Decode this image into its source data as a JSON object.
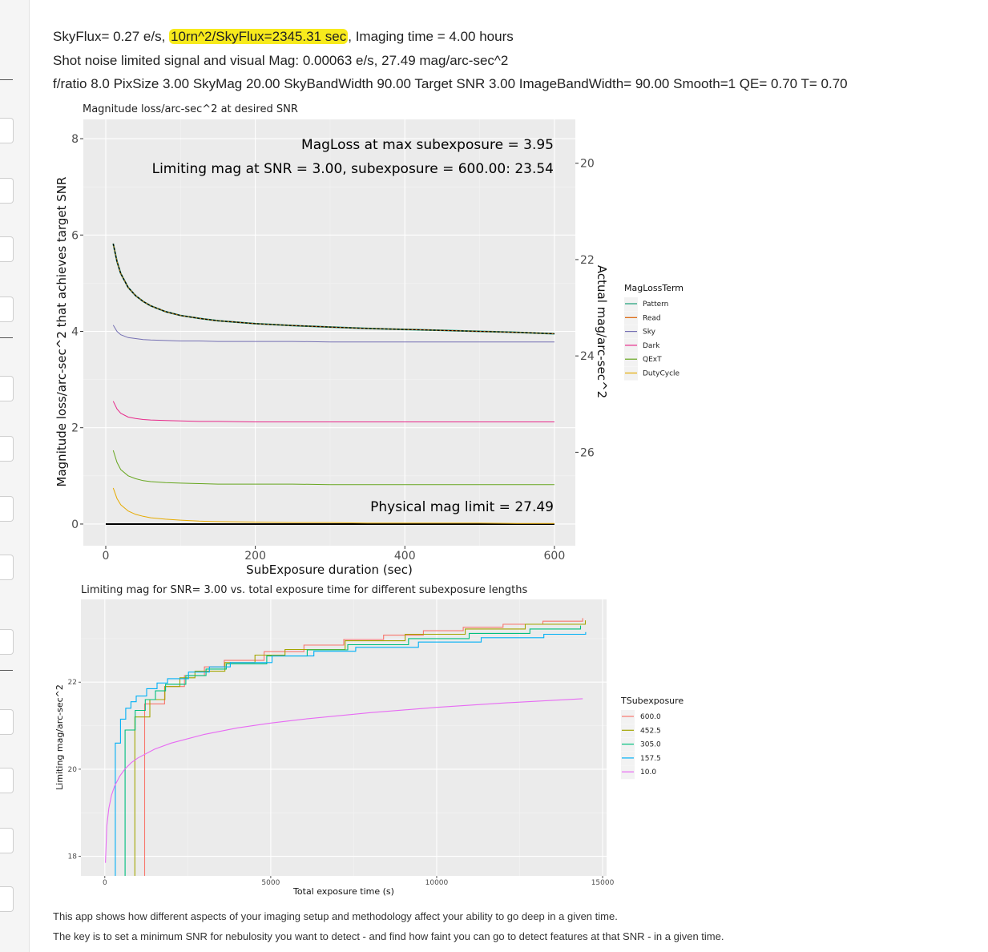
{
  "header": {
    "line1_pre": "SkyFlux= 0.27 e/s, ",
    "line1_hl": "10rn^2/SkyFlux=2345.31 sec",
    "line1_post": ", Imaging time = 4.00 hours",
    "line2": "Shot noise limited signal and visual Mag: 0.00063 e/s, 27.49 mag/arc-sec^2",
    "line3": "f/ratio 8.0 PixSize 3.00 SkyMag 20.00 SkyBandWidth 90.00 Target SNR 3.00 ImageBandWidth= 90.00 Smooth=1 QE= 0.70 T= 0.70"
  },
  "footer": {
    "line1": "This app shows how different aspects of your imaging setup and methodology affect your ability to go deep in a given time.",
    "line2": "The key is to set a minimum SNR for nebulosity you want to detect - and find how faint you can go to detect features at that SNR - in a given time."
  },
  "colors": {
    "accent_highlight": "#f7ea1c",
    "panel_bg": "#ebebeb",
    "Pattern": "#1b9e77",
    "Read": "#d95f02",
    "Sky": "#7570b3",
    "Dark": "#e7298a",
    "QExT": "#66a61e",
    "DutyCycle": "#e6ab02",
    "ts600": "#f8766d",
    "ts452": "#a3a500",
    "ts305": "#00bf7d",
    "ts157": "#00b0f6",
    "ts10": "#e76bf3"
  },
  "chart_data": [
    {
      "type": "line",
      "title": "Magnitude loss/arc-sec^2 at desired SNR",
      "xlabel": "SubExposure duration (sec)",
      "ylabel": "Magnitude loss/arc-sec^2 that achieves target SNR",
      "y2label": "Actual mag/arc-sec^2",
      "xlim": [
        -30,
        628
      ],
      "ylim": [
        -0.45,
        8.4
      ],
      "xticks": [
        0,
        200,
        400,
        600
      ],
      "yticks": [
        0,
        2,
        4,
        6,
        8
      ],
      "y2ticks": [
        20,
        22,
        24,
        26
      ],
      "y2_transform": "y2 = 27.49 - y",
      "grid": true,
      "legend": {
        "title": "MagLossTerm",
        "position": "right",
        "entries": [
          "Pattern",
          "Read",
          "Sky",
          "Dark",
          "QExT",
          "DutyCycle"
        ]
      },
      "annotations": {
        "a1": "MagLoss at max subexposure =   3.95",
        "a2": "Limiting mag at SNR =   3.00, subexposure = 600.00:  23.54",
        "a3": "Physical mag limit =  27.49"
      },
      "x": [
        10,
        15,
        20,
        30,
        40,
        50,
        60,
        80,
        100,
        125,
        150,
        200,
        250,
        300,
        350,
        400,
        450,
        500,
        550,
        600
      ],
      "series": [
        {
          "name": "Pattern",
          "values": [
            5.82,
            5.45,
            5.2,
            4.91,
            4.74,
            4.62,
            4.53,
            4.41,
            4.33,
            4.27,
            4.22,
            4.16,
            4.12,
            4.09,
            4.06,
            4.04,
            4.02,
            4.0,
            3.98,
            3.95
          ]
        },
        {
          "name": "Read",
          "values": [
            5.82,
            5.45,
            5.2,
            4.91,
            4.74,
            4.62,
            4.53,
            4.41,
            4.33,
            4.27,
            4.22,
            4.16,
            4.12,
            4.09,
            4.06,
            4.04,
            4.02,
            4.0,
            3.98,
            3.95
          ]
        },
        {
          "name": "Sky",
          "values": [
            4.13,
            4.0,
            3.93,
            3.87,
            3.85,
            3.83,
            3.82,
            3.81,
            3.8,
            3.8,
            3.79,
            3.79,
            3.79,
            3.78,
            3.78,
            3.78,
            3.78,
            3.78,
            3.78,
            3.78
          ]
        },
        {
          "name": "Dark",
          "values": [
            2.55,
            2.39,
            2.3,
            2.22,
            2.19,
            2.17,
            2.16,
            2.15,
            2.14,
            2.13,
            2.13,
            2.12,
            2.12,
            2.12,
            2.12,
            2.12,
            2.12,
            2.12,
            2.12,
            2.12
          ]
        },
        {
          "name": "QExT",
          "values": [
            1.53,
            1.28,
            1.13,
            1.0,
            0.94,
            0.9,
            0.88,
            0.86,
            0.85,
            0.84,
            0.83,
            0.83,
            0.83,
            0.82,
            0.82,
            0.82,
            0.82,
            0.82,
            0.82,
            0.82
          ]
        },
        {
          "name": "DutyCycle",
          "values": [
            0.75,
            0.53,
            0.4,
            0.27,
            0.2,
            0.16,
            0.13,
            0.1,
            0.08,
            0.06,
            0.05,
            0.04,
            0.03,
            0.03,
            0.02,
            0.02,
            0.02,
            0.02,
            0.01,
            0.01
          ]
        }
      ],
      "zero_line": 0
    },
    {
      "type": "line",
      "title": "Limiting mag for SNR= 3.00 vs. total exposure time for different subexposure lengths",
      "xlabel": "Total exposure time (s)",
      "ylabel": "Limiting mag/arc-sec^2",
      "xlim": [
        -720,
        15120
      ],
      "ylim": [
        17.55,
        23.9
      ],
      "xticks": [
        0,
        5000,
        10000,
        15000
      ],
      "yticks": [
        18,
        20,
        22
      ],
      "grid": true,
      "legend": {
        "title": "TSubexposure",
        "position": "right",
        "entries": [
          "600.0",
          "452.5",
          "305.0",
          "157.5",
          "10.0"
        ]
      },
      "series": [
        {
          "name": "600.0",
          "x": [
            0,
            600,
            1200,
            1800,
            2400,
            3000,
            3600,
            4800,
            6000,
            7200,
            8400,
            9600,
            10800,
            12000,
            13200,
            14400
          ],
          "values": [
            17.5,
            17.5,
            21.5,
            21.9,
            22.15,
            22.35,
            22.5,
            22.7,
            22.85,
            22.98,
            23.08,
            23.18,
            23.26,
            23.33,
            23.4,
            23.47
          ]
        },
        {
          "name": "452.5",
          "x": [
            0,
            452,
            905,
            1357,
            1810,
            2262,
            2715,
            3620,
            4525,
            5430,
            7240,
            9050,
            10860,
            12670,
            14480
          ],
          "values": [
            17.5,
            17.5,
            21.2,
            21.6,
            21.9,
            22.1,
            22.25,
            22.45,
            22.62,
            22.75,
            22.95,
            23.1,
            23.22,
            23.33,
            23.42
          ]
        },
        {
          "name": "305.0",
          "x": [
            0,
            305,
            610,
            915,
            1220,
            1525,
            1830,
            2440,
            3050,
            3660,
            4880,
            6100,
            7320,
            9150,
            10980,
            12810,
            14335
          ],
          "values": [
            17.5,
            17.5,
            20.9,
            21.35,
            21.6,
            21.8,
            21.95,
            22.15,
            22.3,
            22.42,
            22.6,
            22.74,
            22.86,
            23.0,
            23.12,
            23.22,
            23.3
          ]
        },
        {
          "name": "157.5",
          "x": [
            0,
            157,
            315,
            472,
            630,
            787,
            945,
            1260,
            1575,
            1890,
            2520,
            3150,
            3780,
            5040,
            6300,
            7560,
            9450,
            11340,
            13230,
            14490
          ],
          "values": [
            17.5,
            17.5,
            20.6,
            21.15,
            21.4,
            21.55,
            21.68,
            21.85,
            21.98,
            22.08,
            22.23,
            22.35,
            22.45,
            22.6,
            22.71,
            22.8,
            22.92,
            23.02,
            23.1,
            23.15
          ]
        },
        {
          "name": "10.0",
          "x": [
            20,
            60,
            120,
            200,
            300,
            450,
            600,
            800,
            1000,
            1500,
            2000,
            3000,
            4000,
            5000,
            6000,
            8000,
            10000,
            12000,
            14400
          ],
          "values": [
            17.85,
            18.7,
            19.1,
            19.4,
            19.62,
            19.84,
            20.0,
            20.15,
            20.26,
            20.46,
            20.6,
            20.8,
            20.95,
            21.06,
            21.15,
            21.3,
            21.42,
            21.52,
            21.62
          ]
        }
      ]
    }
  ]
}
